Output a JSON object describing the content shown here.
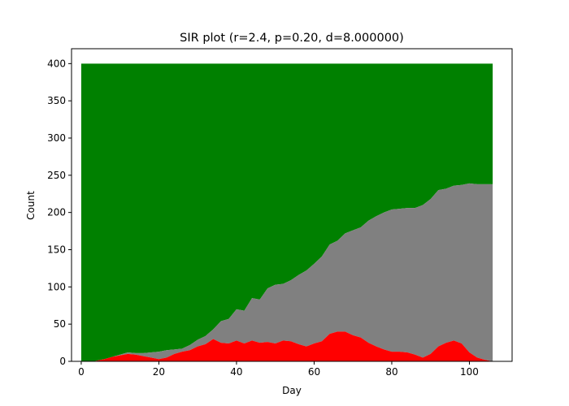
{
  "chart_data": {
    "type": "area",
    "title": "SIR plot (r=2.4, p=0.20, d=8.000000)",
    "xlabel": "Day",
    "ylabel": "Count",
    "xlim": [
      -2.5,
      111
    ],
    "ylim": [
      0,
      420
    ],
    "xticks": [
      0,
      20,
      40,
      60,
      80,
      100
    ],
    "yticks": [
      0,
      50,
      100,
      150,
      200,
      250,
      300,
      350,
      400
    ],
    "stacked": true,
    "series": [
      {
        "color": "#ff0000",
        "x": [
          0,
          3,
          4,
          6,
          8,
          10,
          12,
          14,
          16,
          18,
          20,
          22,
          24,
          26,
          28,
          30,
          32,
          34,
          36,
          38,
          40,
          42,
          44,
          46,
          48,
          50,
          52,
          54,
          56,
          58,
          60,
          62,
          64,
          66,
          68,
          70,
          72,
          74,
          76,
          78,
          80,
          82,
          84,
          86,
          88,
          90,
          92,
          94,
          96,
          98,
          100,
          102,
          104,
          106
        ],
        "values": [
          0,
          0,
          1,
          3,
          6,
          8,
          10,
          9,
          7,
          5,
          3,
          5,
          10,
          13,
          15,
          20,
          23,
          30,
          25,
          24,
          28,
          24,
          28,
          25,
          26,
          24,
          28,
          27,
          23,
          20,
          24,
          27,
          37,
          40,
          40,
          35,
          32,
          25,
          20,
          16,
          13,
          13,
          12,
          9,
          5,
          10,
          20,
          25,
          28,
          24,
          12,
          5,
          2,
          0
        ]
      },
      {
        "color": "#808080",
        "x": [
          0,
          4,
          8,
          12,
          14,
          16,
          18,
          20,
          22,
          24,
          26,
          28,
          30,
          32,
          34,
          36,
          38,
          40,
          42,
          44,
          46,
          48,
          50,
          52,
          54,
          56,
          58,
          60,
          62,
          64,
          66,
          68,
          70,
          72,
          74,
          76,
          78,
          80,
          82,
          84,
          86,
          88,
          90,
          92,
          94,
          96,
          98,
          100,
          102,
          104,
          106
        ],
        "values": [
          0,
          0,
          0,
          2,
          2,
          4,
          7,
          10,
          10,
          6,
          4,
          7,
          9,
          11,
          13,
          29,
          33,
          42,
          44,
          57,
          58,
          72,
          79,
          76,
          82,
          93,
          102,
          107,
          114,
          120,
          122,
          132,
          141,
          148,
          164,
          175,
          184,
          191,
          192,
          194,
          197,
          205,
          208,
          210,
          207,
          208,
          213,
          227,
          233,
          236,
          238
        ]
      },
      {
        "color": "#008000",
        "total": 400
      }
    ]
  }
}
